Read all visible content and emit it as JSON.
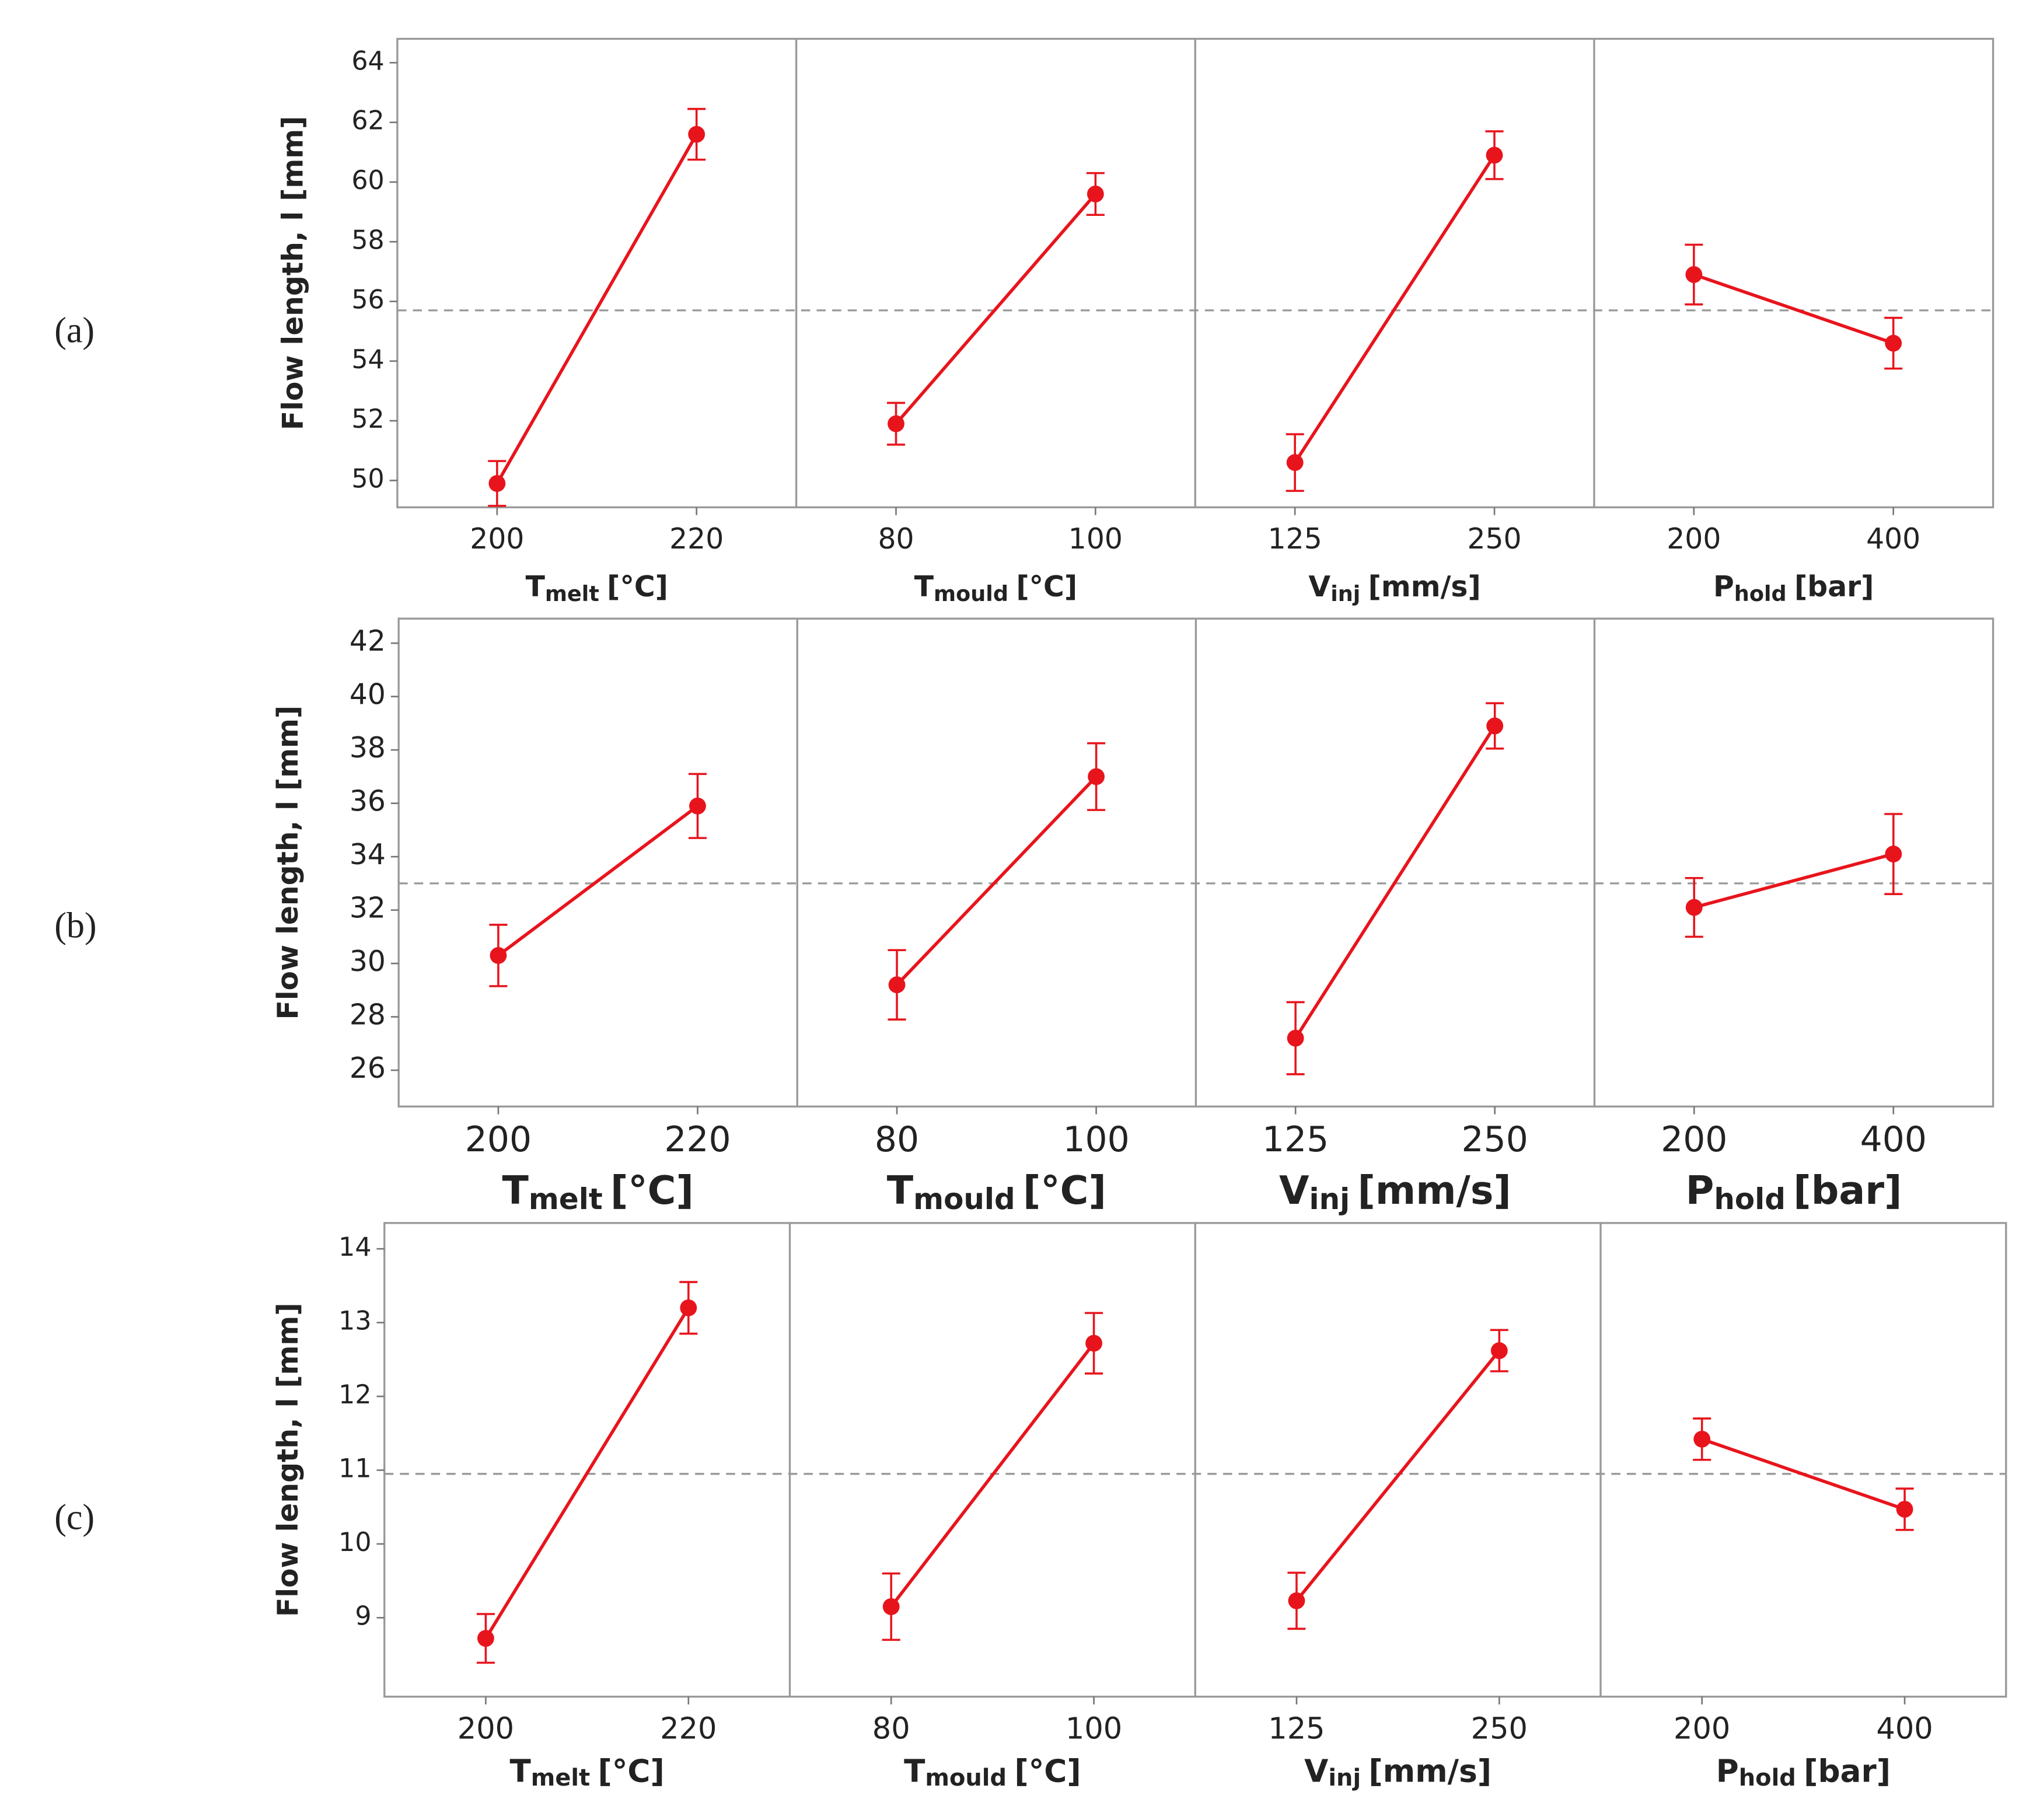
{
  "chart_data": [
    {
      "type": "line",
      "panel_label": "(a)",
      "ylabel": "Flow length, l [mm]",
      "color": "#e8141c",
      "ylim": [
        49.1,
        64.8
      ],
      "yticks": [
        50,
        52,
        54,
        56,
        58,
        60,
        62,
        64
      ],
      "mean": 55.7,
      "panels": [
        {
          "xlabel": {
            "symbol": "T",
            "sub": "melt",
            "unit": "[°C]"
          },
          "categories": [
            "200",
            "220"
          ],
          "values": [
            49.9,
            61.6
          ],
          "errors": [
            0.75,
            0.85
          ]
        },
        {
          "xlabel": {
            "symbol": "T",
            "sub": "mould",
            "unit": "[°C]"
          },
          "categories": [
            "80",
            "100"
          ],
          "values": [
            51.9,
            59.6
          ],
          "errors": [
            0.7,
            0.7
          ]
        },
        {
          "xlabel": {
            "symbol": "V",
            "sub": "inj",
            "unit": "[mm/s]"
          },
          "categories": [
            "125",
            "250"
          ],
          "values": [
            50.6,
            60.9
          ],
          "errors": [
            0.95,
            0.8
          ]
        },
        {
          "xlabel": {
            "symbol": "P",
            "sub": "hold",
            "unit": "[bar]"
          },
          "categories": [
            "200",
            "400"
          ],
          "values": [
            56.9,
            54.6
          ],
          "errors": [
            1.0,
            0.85
          ]
        }
      ]
    },
    {
      "type": "line",
      "panel_label": "(b)",
      "ylabel": "Flow length, l [mm]",
      "color": "#e8141c",
      "ylim": [
        24.64,
        42.92
      ],
      "yticks": [
        26,
        28,
        30,
        32,
        34,
        36,
        38,
        40,
        42
      ],
      "mean": 33.0,
      "panels": [
        {
          "xlabel": {
            "symbol": "T",
            "sub": "melt",
            "unit": "[°C]"
          },
          "categories": [
            "200",
            "220"
          ],
          "values": [
            30.3,
            35.9
          ],
          "errors": [
            1.15,
            1.2
          ]
        },
        {
          "xlabel": {
            "symbol": "T",
            "sub": "mould",
            "unit": "[°C]"
          },
          "categories": [
            "80",
            "100"
          ],
          "values": [
            29.2,
            37.0
          ],
          "errors": [
            1.3,
            1.25
          ]
        },
        {
          "xlabel": {
            "symbol": "V",
            "sub": "inj",
            "unit": "[mm/s]"
          },
          "categories": [
            "125",
            "250"
          ],
          "values": [
            27.2,
            38.9
          ],
          "errors": [
            1.35,
            0.85
          ]
        },
        {
          "xlabel": {
            "symbol": "P",
            "sub": "hold",
            "unit": "[bar]"
          },
          "categories": [
            "200",
            "400"
          ],
          "values": [
            32.1,
            34.1
          ],
          "errors": [
            1.1,
            1.5
          ]
        }
      ]
    },
    {
      "type": "line",
      "panel_label": "(c)",
      "ylabel": "Flow length, l [mm]",
      "color": "#e8141c",
      "ylim": [
        7.93,
        14.35
      ],
      "yticks": [
        9,
        10,
        11,
        12,
        13,
        14
      ],
      "mean": 10.95,
      "panels": [
        {
          "xlabel": {
            "symbol": "T",
            "sub": "melt",
            "unit": "[°C]"
          },
          "categories": [
            "200",
            "220"
          ],
          "values": [
            8.72,
            13.2
          ],
          "errors": [
            0.33,
            0.35
          ]
        },
        {
          "xlabel": {
            "symbol": "T",
            "sub": "mould",
            "unit": "[°C]"
          },
          "categories": [
            "80",
            "100"
          ],
          "values": [
            9.15,
            12.72
          ],
          "errors": [
            0.45,
            0.41
          ]
        },
        {
          "xlabel": {
            "symbol": "V",
            "sub": "inj",
            "unit": "[mm/s]"
          },
          "categories": [
            "125",
            "250"
          ],
          "values": [
            9.23,
            12.62
          ],
          "errors": [
            0.38,
            0.28
          ]
        },
        {
          "xlabel": {
            "symbol": "P",
            "sub": "hold",
            "unit": "[bar]"
          },
          "categories": [
            "200",
            "400"
          ],
          "values": [
            11.42,
            10.47
          ],
          "errors": [
            0.28,
            0.28
          ]
        }
      ]
    }
  ]
}
